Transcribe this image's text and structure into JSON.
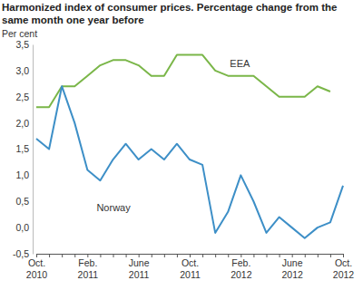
{
  "chart_data": {
    "type": "line",
    "title": "Harmonized index of consumer prices. Percentage change from the same month one year before",
    "y_label": "Per cent",
    "categories": [
      "Oct.\n2010",
      null,
      null,
      null,
      "Feb.\n2011",
      null,
      null,
      null,
      "June\n2011",
      null,
      null,
      null,
      "Oct.\n2011",
      null,
      null,
      null,
      "Feb.\n2012",
      null,
      null,
      null,
      "June\n2012",
      null,
      null,
      null,
      "Oct.\n2012"
    ],
    "series": [
      {
        "name": "EEA",
        "color": "#7ab648",
        "values": [
          2.3,
          2.3,
          2.7,
          2.7,
          2.9,
          3.1,
          3.2,
          3.2,
          3.1,
          2.9,
          2.9,
          3.3,
          3.3,
          3.3,
          3.0,
          2.9,
          2.9,
          2.9,
          2.7,
          2.5,
          2.5,
          2.5,
          2.7,
          2.6,
          null
        ]
      },
      {
        "name": "Norway",
        "color": "#3d8fc7",
        "values": [
          1.7,
          1.5,
          2.7,
          2.0,
          1.1,
          0.9,
          1.3,
          1.6,
          1.3,
          1.5,
          1.3,
          1.6,
          1.3,
          1.2,
          -0.1,
          0.3,
          1.0,
          0.5,
          -0.1,
          0.2,
          0.0,
          -0.2,
          0.0,
          0.1,
          0.8
        ]
      }
    ],
    "ylim": [
      -0.5,
      3.5
    ],
    "yticks": [
      {
        "value": -0.5,
        "label": "-0,5"
      },
      {
        "value": 0,
        "label": "0,0"
      },
      {
        "value": 0.5,
        "label": "0,5"
      },
      {
        "value": 1,
        "label": "1,0"
      },
      {
        "value": 1.5,
        "label": "1,5"
      },
      {
        "value": 2,
        "label": "2,0"
      },
      {
        "value": 2.5,
        "label": "2,5"
      },
      {
        "value": 3,
        "label": "3,0"
      },
      {
        "value": 3.5,
        "label": "3,5"
      }
    ],
    "grid": false
  }
}
